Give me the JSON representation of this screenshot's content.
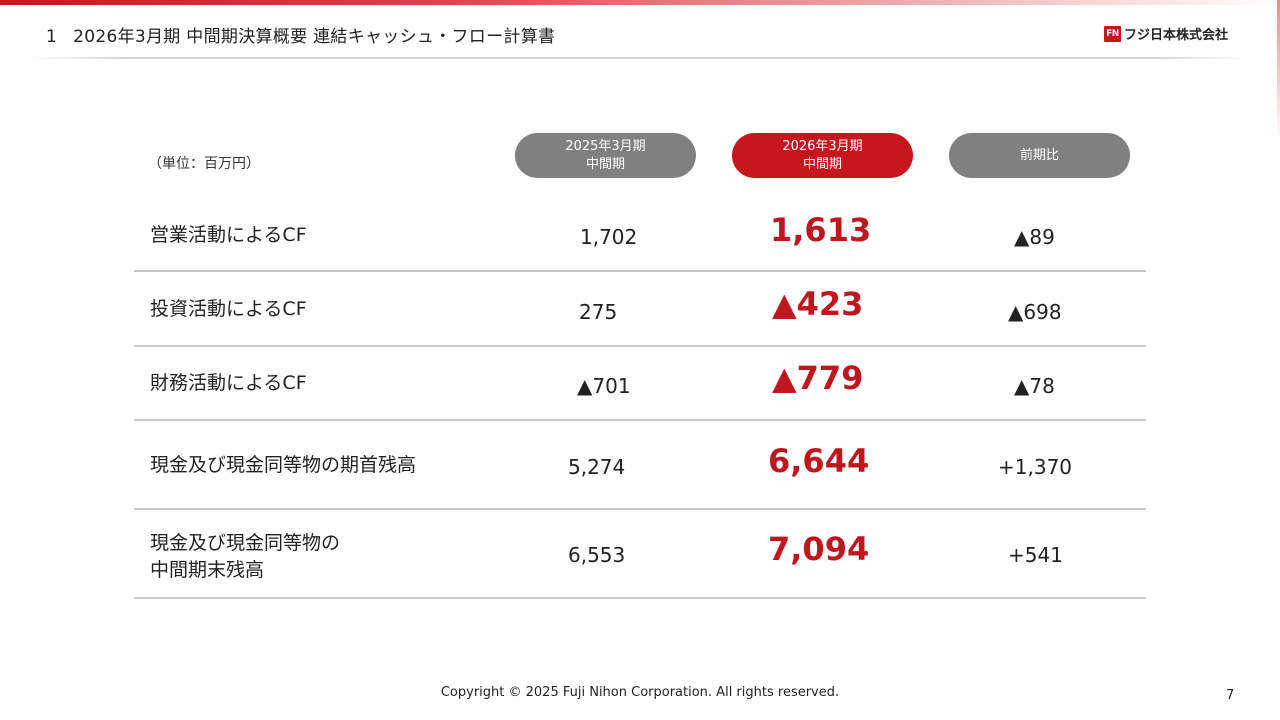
{
  "header": {
    "section_number": "1",
    "title": "2026年3月期 中間期決算概要 連結キャッシュ・フロー計算書"
  },
  "logo": {
    "mark": "FN",
    "company_name": "フジ日本株式会社",
    "color": "#c8161e"
  },
  "table": {
    "unit_label": "（単位：百万円）",
    "columns": [
      {
        "line1": "2025年3月期",
        "line2": "中間期"
      },
      {
        "line1": "2026年3月期",
        "line2": "中間期"
      },
      {
        "line1": "前期比",
        "line2": ""
      }
    ],
    "rows": [
      {
        "label_line1": "営業活動によるCF",
        "label_line2": "",
        "prev": "1,702",
        "current": "1,613",
        "diff": "▲89"
      },
      {
        "label_line1": "投資活動によるCF",
        "label_line2": "",
        "prev": "275",
        "current": "▲423",
        "diff": "▲698"
      },
      {
        "label_line1": "財務活動によるCF",
        "label_line2": "",
        "prev": "▲701",
        "current": "▲779",
        "diff": "▲78"
      },
      {
        "label_line1": "現金及び現金同等物の期首残高",
        "label_line2": "",
        "prev": "5,274",
        "current": "6,644",
        "diff": "+1,370"
      },
      {
        "label_line1": "現金及び現金同等物の",
        "label_line2": "中間期末残高",
        "prev": "6,553",
        "current": "7,094",
        "diff": "+541"
      }
    ]
  },
  "footer": {
    "copyright": "Copyright © 2025 Fuji Nihon Corporation.  All rights reserved.",
    "page_number": "7"
  },
  "colors": {
    "accent_red": "#c8161e",
    "header_gray": "#808080"
  }
}
